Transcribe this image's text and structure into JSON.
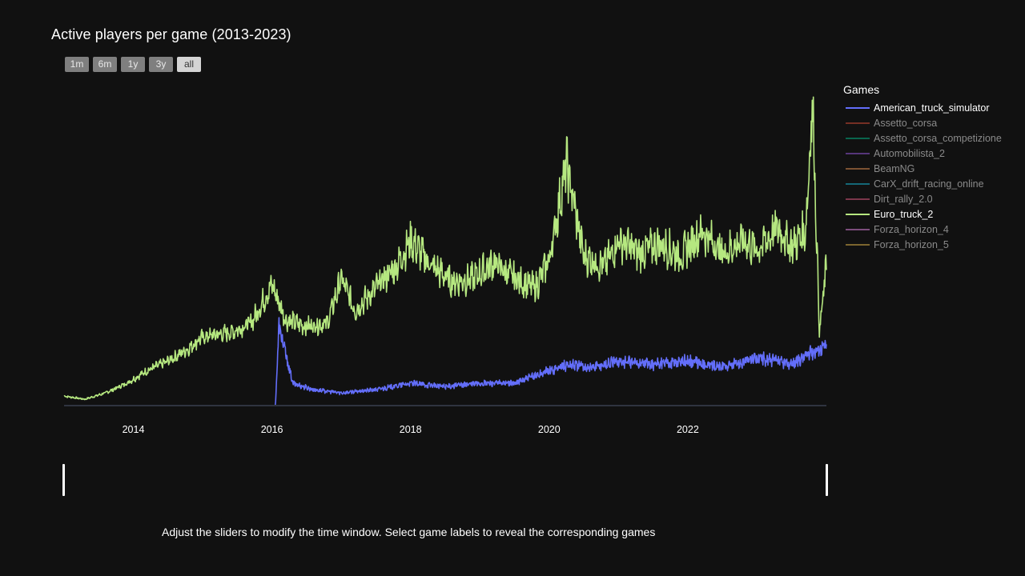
{
  "title": "Active players per game (2013-2023)",
  "range_buttons": [
    "1m",
    "6m",
    "1y",
    "3y",
    "all"
  ],
  "active_range": "all",
  "legend": {
    "title": "Games",
    "items": [
      {
        "label": "American_truck_simulator",
        "color": "#636efa",
        "visible": true
      },
      {
        "label": "Assetto_corsa",
        "color": "#ef553b",
        "visible": false
      },
      {
        "label": "Assetto_corsa_competizione",
        "color": "#00cc96",
        "visible": false
      },
      {
        "label": "Automobilista_2",
        "color": "#ab63fa",
        "visible": false
      },
      {
        "label": "BeamNG",
        "color": "#ffa15a",
        "visible": false
      },
      {
        "label": "CarX_drift_racing_online",
        "color": "#19d3f3",
        "visible": false
      },
      {
        "label": "Dirt_rally_2.0",
        "color": "#ff6692",
        "visible": false
      },
      {
        "label": "Euro_truck_2",
        "color": "#b6e880",
        "visible": true
      },
      {
        "label": "Forza_horizon_4",
        "color": "#ff97ff",
        "visible": false
      },
      {
        "label": "Forza_horizon_5",
        "color": "#fecb52",
        "visible": false
      }
    ]
  },
  "footnote": "Adjust the sliders to modify the time window. Select game labels to reveal the corresponding games",
  "chart_data": {
    "type": "line",
    "title": "Active players per game (2013-2023)",
    "xlabel": "",
    "ylabel": "",
    "x_tick_labels": [
      "2014",
      "2016",
      "2018",
      "2020",
      "2022"
    ],
    "xlim": [
      2013.0,
      2024.0
    ],
    "ylim": [
      0,
      100
    ],
    "grid": false,
    "legend_position": "right",
    "series": [
      {
        "name": "Euro_truck_2",
        "color": "#b6e880",
        "x": [
          2013.0,
          2013.3,
          2013.6,
          2013.9,
          2014.2,
          2014.5,
          2014.8,
          2014.95,
          2015.1,
          2015.4,
          2015.7,
          2016.0,
          2016.2,
          2016.5,
          2016.8,
          2017.0,
          2017.2,
          2017.5,
          2017.8,
          2018.0,
          2018.3,
          2018.6,
          2018.9,
          2019.2,
          2019.5,
          2019.8,
          2020.0,
          2020.25,
          2020.5,
          2020.8,
          2021.0,
          2021.3,
          2021.6,
          2021.9,
          2022.2,
          2022.5,
          2022.8,
          2023.0,
          2023.3,
          2023.5,
          2023.7,
          2023.8,
          2023.9,
          2024.0
        ],
        "values": [
          3,
          2,
          4,
          7,
          11,
          14,
          18,
          21,
          22,
          23,
          26,
          38,
          27,
          25,
          26,
          40,
          30,
          37,
          44,
          52,
          44,
          39,
          40,
          45,
          40,
          37,
          46,
          76,
          47,
          44,
          52,
          48,
          51,
          47,
          55,
          48,
          52,
          49,
          56,
          50,
          55,
          96,
          23,
          44
        ]
      },
      {
        "name": "American_truck_simulator",
        "color": "#636efa",
        "x": [
          2015.5,
          2016.05,
          2016.1,
          2016.3,
          2016.6,
          2017.0,
          2017.5,
          2018.0,
          2018.5,
          2019.0,
          2019.5,
          2020.0,
          2020.3,
          2020.6,
          2021.0,
          2021.5,
          2022.0,
          2022.5,
          2023.0,
          2023.5,
          2023.8,
          2024.0
        ],
        "values": [
          0,
          0,
          25,
          7,
          5,
          4,
          5,
          7,
          6,
          7,
          7,
          11,
          13,
          12,
          14,
          13,
          14,
          12,
          15,
          13,
          17,
          19
        ]
      }
    ]
  }
}
